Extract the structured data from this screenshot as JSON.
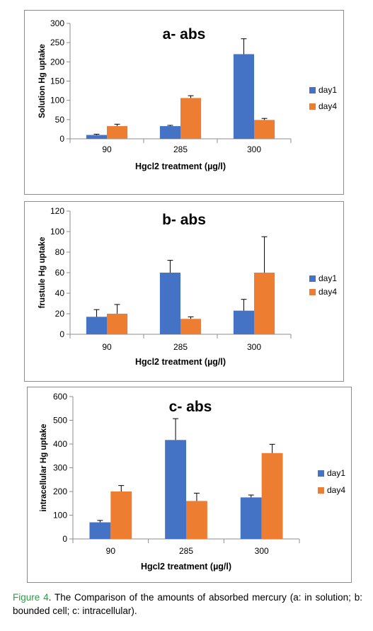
{
  "figure": {
    "label": "Figure 4",
    "caption": ". The Comparison of the amounts of absorbed mercury (a: in solution; b: bounded cell; c: intracellular)."
  },
  "colors": {
    "day1": "#4472C4",
    "day4": "#ED7D31",
    "axis": "#8c8c8c",
    "errorbar": "#000000"
  },
  "chart_data": [
    {
      "type": "bar",
      "title": "a- abs",
      "xlabel": "Hgcl2 treatment (µg/l)",
      "ylabel": "Solution Hg uptake",
      "categories": [
        "90",
        "285",
        "300"
      ],
      "ylim": [
        0,
        300
      ],
      "yticks": [
        0,
        50,
        100,
        150,
        200,
        250,
        300
      ],
      "legend_position": "right",
      "series": [
        {
          "name": "day1",
          "values": [
            10,
            33,
            220
          ],
          "errors": [
            2,
            2,
            40
          ]
        },
        {
          "name": "day4",
          "values": [
            33,
            106,
            49
          ],
          "errors": [
            5,
            6,
            4
          ]
        }
      ]
    },
    {
      "type": "bar",
      "title": "b- abs",
      "xlabel": "Hgcl2 treatment (µg/l)",
      "ylabel": "frustule Hg uptake",
      "categories": [
        "90",
        "285",
        "300"
      ],
      "ylim": [
        0,
        120
      ],
      "yticks": [
        0,
        20,
        40,
        60,
        80,
        100,
        120
      ],
      "legend_position": "right",
      "series": [
        {
          "name": "day1",
          "values": [
            17,
            60,
            23
          ],
          "errors": [
            7,
            12,
            11
          ]
        },
        {
          "name": "day4",
          "values": [
            20,
            15,
            60
          ],
          "errors": [
            9,
            2,
            35
          ]
        }
      ]
    },
    {
      "type": "bar",
      "title": "c- abs",
      "xlabel": "Hgcl2 treatment (µg/l)",
      "ylabel": "intracellular Hg uptake",
      "categories": [
        "90",
        "285",
        "300"
      ],
      "ylim": [
        0,
        600
      ],
      "yticks": [
        0,
        100,
        200,
        300,
        400,
        500,
        600
      ],
      "legend_position": "right",
      "series": [
        {
          "name": "day1",
          "values": [
            70,
            417,
            175
          ],
          "errors": [
            8,
            90,
            10
          ]
        },
        {
          "name": "day4",
          "values": [
            200,
            160,
            362
          ],
          "errors": [
            25,
            33,
            37
          ]
        }
      ]
    }
  ]
}
